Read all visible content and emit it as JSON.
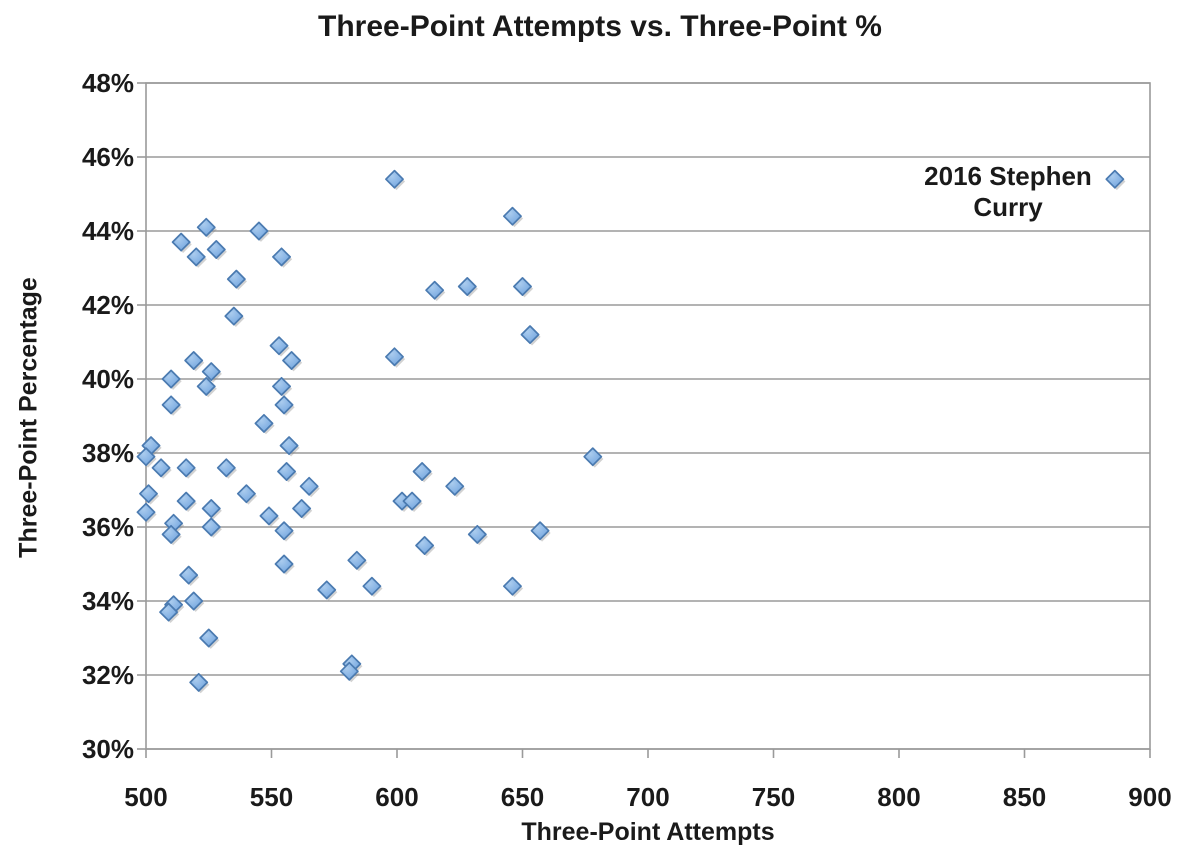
{
  "chart_data": {
    "type": "scatter",
    "title": "Three-Point Attempts vs. Three-Point %",
    "xlabel": "Three-Point Attempts",
    "ylabel": "Three-Point Percentage",
    "xlim": [
      500,
      900
    ],
    "ylim": [
      30,
      48
    ],
    "xticks": [
      500,
      550,
      600,
      650,
      700,
      750,
      800,
      850,
      900
    ],
    "xtick_labels": [
      "500",
      "550",
      "600",
      "650",
      "700",
      "750",
      "800",
      "850",
      "900"
    ],
    "yticks": [
      30,
      32,
      34,
      36,
      38,
      40,
      42,
      44,
      46,
      48
    ],
    "ytick_labels": [
      "30%",
      "32%",
      "34%",
      "36%",
      "38%",
      "40%",
      "42%",
      "44%",
      "46%",
      "48%"
    ],
    "grid": "horizontal",
    "marker": "diamond",
    "annotation": {
      "text": "2016 Stephen Curry",
      "at_point": [
        886,
        45.4
      ]
    },
    "series": [
      {
        "name": "",
        "points": [
          [
            524,
            44.1
          ],
          [
            514,
            43.7
          ],
          [
            520,
            43.3
          ],
          [
            528,
            43.5
          ],
          [
            545,
            44.0
          ],
          [
            554,
            43.3
          ],
          [
            536,
            42.7
          ],
          [
            535,
            41.7
          ],
          [
            599,
            45.4
          ],
          [
            646,
            44.4
          ],
          [
            615,
            42.4
          ],
          [
            628,
            42.5
          ],
          [
            650,
            42.5
          ],
          [
            653,
            41.2
          ],
          [
            553,
            40.9
          ],
          [
            558,
            40.5
          ],
          [
            599,
            40.6
          ],
          [
            510,
            40.0
          ],
          [
            519,
            40.5
          ],
          [
            526,
            40.2
          ],
          [
            524,
            39.8
          ],
          [
            510,
            39.3
          ],
          [
            554,
            39.8
          ],
          [
            555,
            39.3
          ],
          [
            547,
            38.8
          ],
          [
            502,
            38.2
          ],
          [
            500,
            37.9
          ],
          [
            557,
            38.2
          ],
          [
            678,
            37.9
          ],
          [
            506,
            37.6
          ],
          [
            516,
            37.6
          ],
          [
            532,
            37.6
          ],
          [
            556,
            37.5
          ],
          [
            565,
            37.1
          ],
          [
            610,
            37.5
          ],
          [
            623,
            37.1
          ],
          [
            540,
            36.9
          ],
          [
            501,
            36.9
          ],
          [
            516,
            36.7
          ],
          [
            526,
            36.5
          ],
          [
            562,
            36.5
          ],
          [
            549,
            36.3
          ],
          [
            500,
            36.4
          ],
          [
            526,
            36.0
          ],
          [
            511,
            36.1
          ],
          [
            555,
            35.9
          ],
          [
            657,
            35.9
          ],
          [
            602,
            36.7
          ],
          [
            606,
            36.7
          ],
          [
            510,
            35.8
          ],
          [
            611,
            35.5
          ],
          [
            632,
            35.8
          ],
          [
            555,
            35.0
          ],
          [
            584,
            35.1
          ],
          [
            572,
            34.3
          ],
          [
            590,
            34.4
          ],
          [
            646,
            34.4
          ],
          [
            517,
            34.7
          ],
          [
            511,
            33.9
          ],
          [
            509,
            33.7
          ],
          [
            519,
            34.0
          ],
          [
            525,
            33.0
          ],
          [
            582,
            32.3
          ],
          [
            581,
            32.1
          ],
          [
            521,
            31.8
          ]
        ]
      },
      {
        "name": "2016 Stephen Curry",
        "points": [
          [
            886,
            45.4
          ]
        ]
      }
    ],
    "colors": {
      "marker_fill": "#6FA3DE",
      "marker_fill_light": "#ABCCEE",
      "marker_stroke": "#4A7AB0",
      "marker_shadow": "#8a8a8a",
      "grid": "#9a9a9a",
      "text": "#1a1a1a",
      "background": "#ffffff"
    }
  }
}
